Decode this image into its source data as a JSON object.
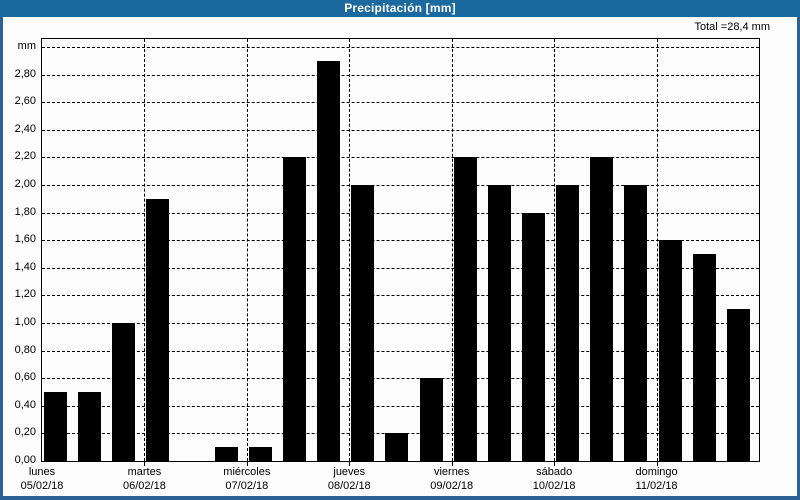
{
  "window": {
    "title": "Precipitación [mm]",
    "total_label": "Total =28,4 mm",
    "colors": {
      "titlebar_bg": "#1b699f",
      "window_border": "#2b6397",
      "bar": "#000000",
      "background": "#fdfdfd",
      "grid": "#000000",
      "text": "#000000",
      "title_text": "#ffffff"
    }
  },
  "chart_data": {
    "type": "bar",
    "title": "Precipitación [mm]",
    "unit": "mm",
    "y_axis_top_label": "mm",
    "total_mm": 28.4,
    "ylim": [
      0,
      3.0
    ],
    "ytick_step": 0.2,
    "ytick_labels": [
      "0,00",
      "0,20",
      "0,40",
      "0,60",
      "0,80",
      "1,00",
      "1,20",
      "1,40",
      "1,60",
      "1,80",
      "2,00",
      "2,20",
      "2,40",
      "2,60",
      "2,80"
    ],
    "grid_style": "dashed",
    "bars_per_day": 3,
    "days": [
      {
        "name": "lunes",
        "date": "05/02/18",
        "values": [
          0.5,
          0.5,
          1.0
        ]
      },
      {
        "name": "martes",
        "date": "06/02/18",
        "values": [
          1.9,
          0,
          0.1
        ]
      },
      {
        "name": "miércoles",
        "date": "07/02/18",
        "values": [
          0.1,
          2.2,
          2.9
        ]
      },
      {
        "name": "jueves",
        "date": "08/02/18",
        "values": [
          2.0,
          0.2,
          0.6
        ]
      },
      {
        "name": "viernes",
        "date": "09/02/18",
        "values": [
          2.2,
          2.0,
          1.8
        ]
      },
      {
        "name": "sábado",
        "date": "10/02/18",
        "values": [
          2.0,
          2.2,
          2.0
        ]
      },
      {
        "name": "domingo",
        "date": "11/02/18",
        "values": [
          1.6,
          1.5,
          1.1
        ]
      }
    ]
  }
}
